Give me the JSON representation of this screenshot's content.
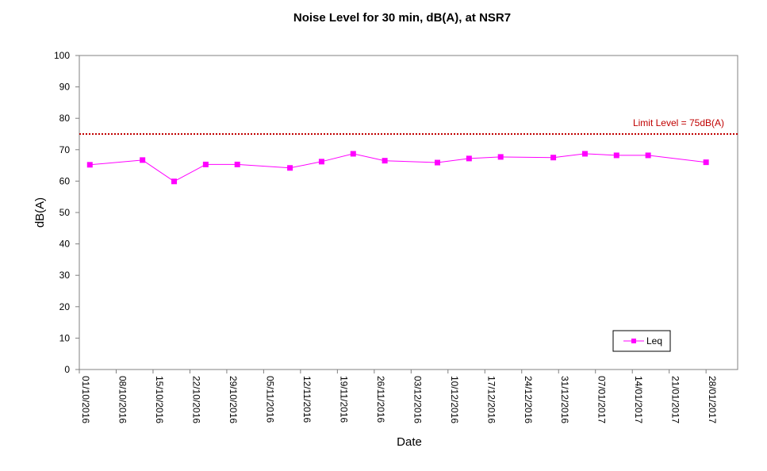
{
  "chart_data": {
    "type": "line",
    "title": "Noise Level for 30 min, dB(A), at NSR7",
    "xlabel": "Date",
    "ylabel": "dB(A)",
    "ylim": [
      0,
      100
    ],
    "yticks": [
      0,
      10,
      20,
      30,
      40,
      50,
      60,
      70,
      80,
      90,
      100
    ],
    "xlim": [
      "2016-10-01",
      "2017-02-03"
    ],
    "xtick_labels": [
      "01/10/2016",
      "08/10/2016",
      "15/10/2016",
      "22/10/2016",
      "29/10/2016",
      "05/11/2016",
      "12/11/2016",
      "19/11/2016",
      "26/11/2016",
      "03/12/2016",
      "10/12/2016",
      "17/12/2016",
      "24/12/2016",
      "31/12/2016",
      "07/01/2017",
      "14/01/2017",
      "21/01/2017",
      "28/01/2017"
    ],
    "grid": false,
    "legend_position": "bottom-right",
    "series": [
      {
        "name": "Leq",
        "color": "#ff00ff",
        "marker": "square",
        "points": [
          {
            "x": "2016-10-03",
            "y": 65.2
          },
          {
            "x": "2016-10-13",
            "y": 66.7
          },
          {
            "x": "2016-10-19",
            "y": 59.9
          },
          {
            "x": "2016-10-25",
            "y": 65.3
          },
          {
            "x": "2016-10-31",
            "y": 65.3
          },
          {
            "x": "2016-11-10",
            "y": 64.2
          },
          {
            "x": "2016-11-16",
            "y": 66.2
          },
          {
            "x": "2016-11-22",
            "y": 68.7
          },
          {
            "x": "2016-11-28",
            "y": 66.5
          },
          {
            "x": "2016-12-08",
            "y": 65.9
          },
          {
            "x": "2016-12-14",
            "y": 67.2
          },
          {
            "x": "2016-12-20",
            "y": 67.7
          },
          {
            "x": "2016-12-30",
            "y": 67.5
          },
          {
            "x": "2017-01-05",
            "y": 68.7
          },
          {
            "x": "2017-01-11",
            "y": 68.2
          },
          {
            "x": "2017-01-17",
            "y": 68.2
          },
          {
            "x": "2017-01-28",
            "y": 66.0
          }
        ]
      }
    ],
    "limit_line": {
      "value": 75,
      "label": "Limit Level = 75dB(A)",
      "color": "#c00000",
      "style": "dotted"
    }
  }
}
